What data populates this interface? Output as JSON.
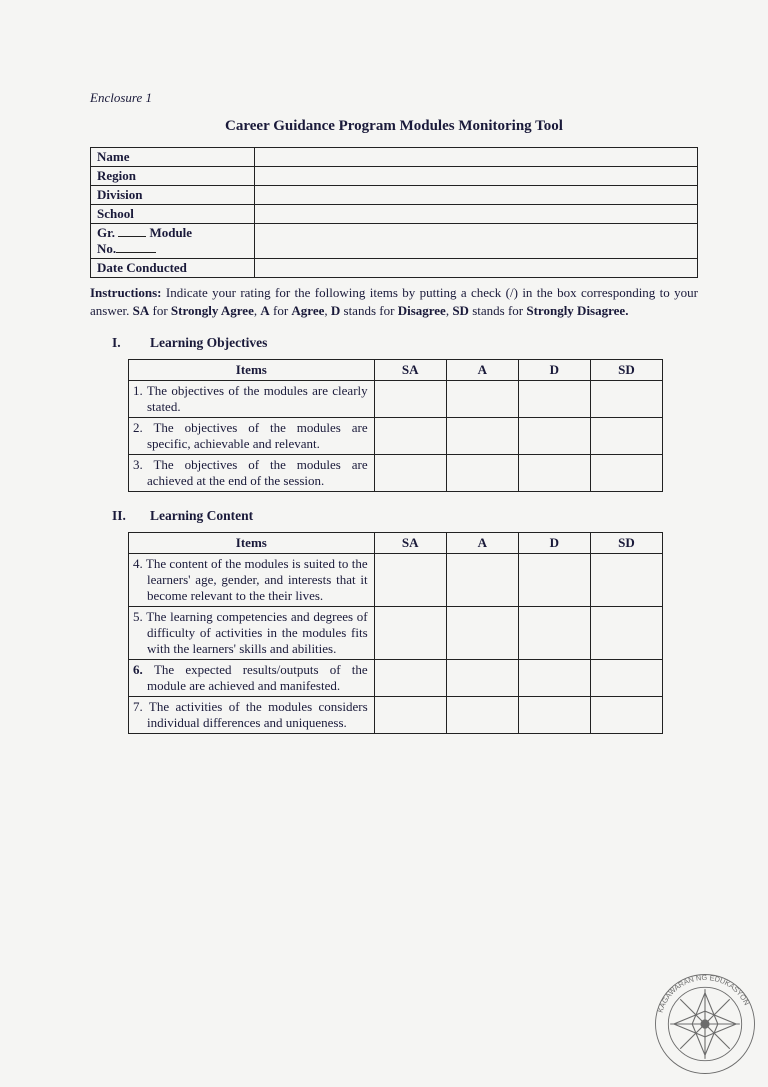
{
  "enclosure": "Enclosure 1",
  "title": "Career Guidance Program Modules Monitoring Tool",
  "info_rows": {
    "name": "Name",
    "region": "Region",
    "division": "Division",
    "school": "School",
    "module_prefix": "Gr.",
    "module_word": "Module",
    "no_prefix": "No.",
    "date": "Date Conducted"
  },
  "instructions": {
    "lead": "Instructions:",
    "body1": " Indicate your rating for the following items by putting a check (/) in the box corresponding to your answer. ",
    "sa": "SA",
    "sa_for": " for ",
    "sa_lbl": "Strongly Agree",
    "comma1": ", ",
    "a": "A",
    "a_for": " for ",
    "a_lbl": "Agree",
    "comma2": ", ",
    "d": "D",
    "d_mid": " stands for ",
    "d_lbl": "Disagree",
    "comma3": ", ",
    "sd": "SD",
    "sd_mid": " stands for ",
    "sd_lbl": "Strongly Disagree.",
    "end": ""
  },
  "headers": {
    "items": "Items",
    "sa": "SA",
    "a": "A",
    "d": "D",
    "sd": "SD"
  },
  "section1": {
    "num": "I.",
    "title": "Learning Objectives",
    "items": [
      {
        "n": "1.",
        "text": "The objectives of the modules are clearly stated."
      },
      {
        "n": "2.",
        "text": "The objectives of the modules are specific, achievable and relevant."
      },
      {
        "n": "3.",
        "text": "The objectives of the modules are achieved at the end of the session."
      }
    ]
  },
  "section2": {
    "num": "II.",
    "title": "Learning Content",
    "items": [
      {
        "n": "4.",
        "bold": false,
        "text": "The content of the modules is suited to the learners' age, gender, and interests that it become relevant to the their lives."
      },
      {
        "n": "5.",
        "bold": false,
        "text": "The learning competencies and degrees of difficulty of activities in the modules fits with the learners' skills and abilities."
      },
      {
        "n": "6.",
        "bold": true,
        "text": "The expected results/outputs of the module are achieved and manifested."
      },
      {
        "n": "7.",
        "bold": false,
        "text": "The activities of the modules considers individual differences and uniqueness."
      }
    ]
  },
  "stamp_text": "KAGAWARAN NG EDUKASYON",
  "colors": {
    "text": "#1a1a3a",
    "border": "#222222",
    "background": "#f5f5f3"
  }
}
